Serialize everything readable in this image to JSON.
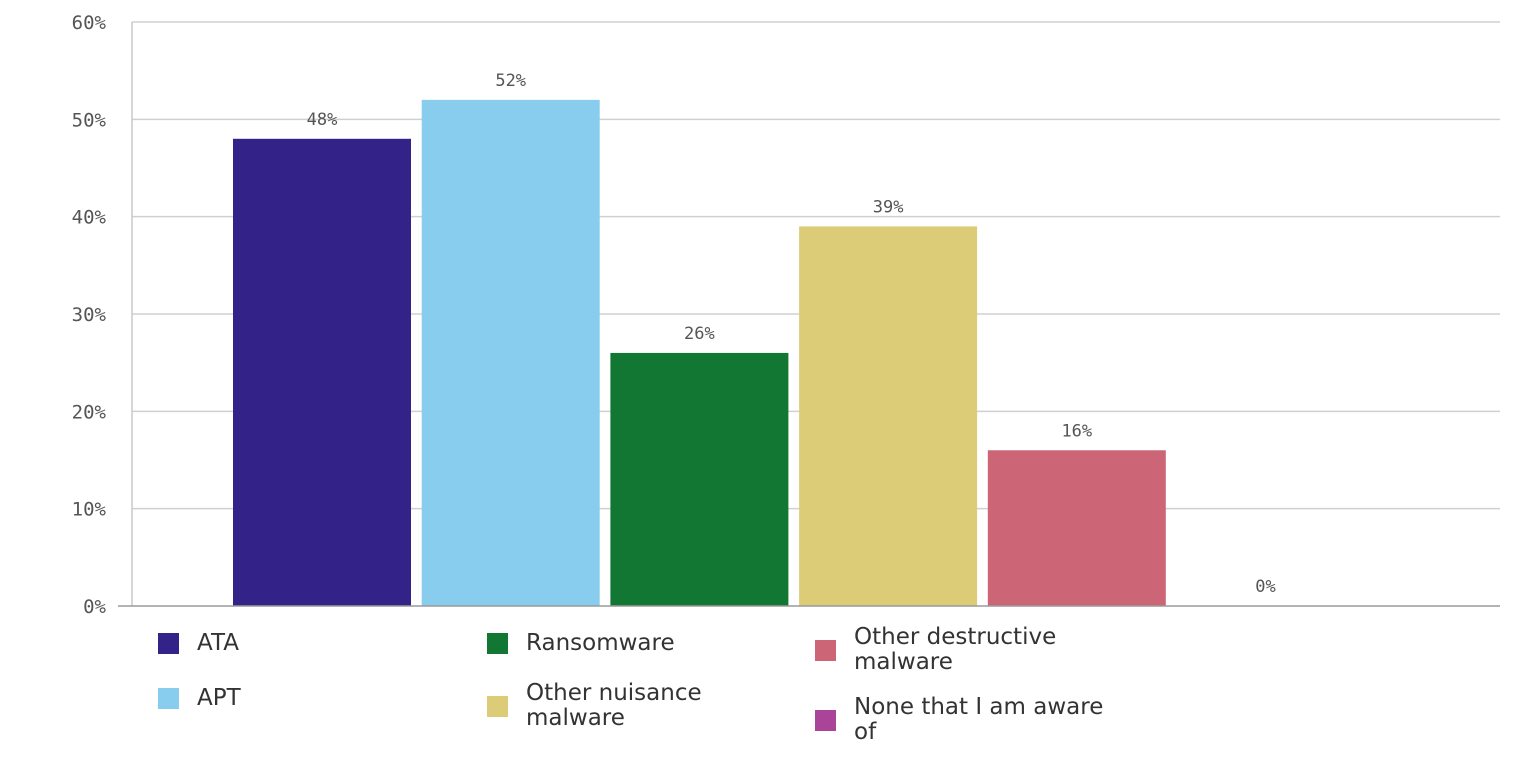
{
  "chart_data": {
    "type": "bar",
    "title": "",
    "xlabel": "",
    "ylabel": "",
    "ylim": [
      0,
      60
    ],
    "yticks": [
      0,
      10,
      20,
      30,
      40,
      50,
      60
    ],
    "ytick_labels": [
      "0%",
      "10%",
      "20%",
      "30%",
      "40%",
      "50%",
      "60%"
    ],
    "grid": true,
    "legend_position": "bottom",
    "categories": [
      "ATA",
      "APT",
      "Ransomware",
      "Other nuisance malware",
      "Other destructive malware",
      "None that I am aware of"
    ],
    "values": [
      48,
      52,
      26,
      39,
      16,
      0
    ],
    "data_labels": [
      "48%",
      "52%",
      "26%",
      "39%",
      "16%",
      "0%"
    ],
    "colors": [
      "#332288",
      "#88ccee",
      "#117733",
      "#ddcc77",
      "#cc6677",
      "#aa4499"
    ]
  },
  "legend": {
    "items": [
      {
        "label": "ATA",
        "color": "#332288"
      },
      {
        "label": "APT",
        "color": "#88ccee"
      },
      {
        "label": "Ransomware",
        "color": "#117733"
      },
      {
        "label": "Other nuisance malware",
        "color": "#ddcc77"
      },
      {
        "label": "Other destructive malware",
        "color": "#cc6677"
      },
      {
        "label": "None that I am aware of",
        "color": "#aa4499"
      }
    ]
  }
}
